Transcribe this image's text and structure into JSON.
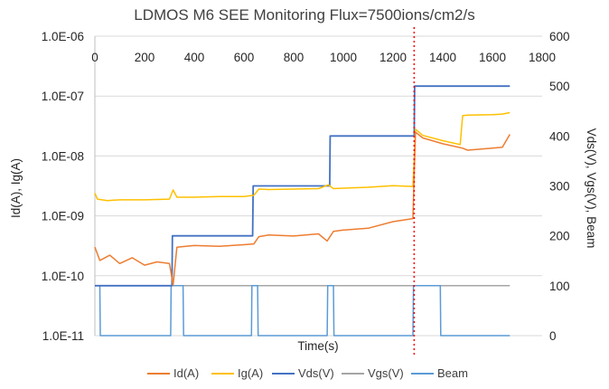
{
  "chart_data": {
    "type": "line",
    "title": "LDMOS M6 SEE Monitoring Flux=7500ions/cm2/s",
    "xlabel": "Time(s)",
    "ylabel_left": "Id(A), Ig(A)",
    "ylabel_right": "Vds(V), Vgs(V), Beam",
    "x_range": [
      0,
      1800
    ],
    "x_ticks": [
      "0",
      "200",
      "400",
      "600",
      "800",
      "1000",
      "1200",
      "1400",
      "1600",
      "1800"
    ],
    "y_left_scale": "log",
    "y_left_range": [
      1e-11,
      1e-06
    ],
    "y_left_ticks": [
      "1.0E-11",
      "1.0E-10",
      "1.0E-09",
      "1.0E-08",
      "1.0E-07",
      "1.0E-06"
    ],
    "y_right_range": [
      0,
      600
    ],
    "y_right_ticks": [
      "0",
      "100",
      "200",
      "300",
      "400",
      "500",
      "600"
    ],
    "marker_line_x": 1285,
    "legend_position": "bottom",
    "series": [
      {
        "name": "Id(A)",
        "axis": "left",
        "color": "#ED7D31",
        "x": [
          0,
          20,
          60,
          100,
          150,
          200,
          250,
          300,
          315,
          330,
          400,
          500,
          600,
          640,
          660,
          700,
          800,
          900,
          935,
          960,
          1000,
          1100,
          1200,
          1280,
          1290,
          1320,
          1400,
          1480,
          1500,
          1550,
          1600,
          1640,
          1670
        ],
        "y": [
          3e-10,
          1.8e-10,
          2.2e-10,
          1.6e-10,
          2e-10,
          1.5e-10,
          1.7e-10,
          1.6e-10,
          7e-11,
          3e-10,
          3.2e-10,
          3.1e-10,
          3.3e-10,
          3.4e-10,
          4.5e-10,
          4.8e-10,
          4.6e-10,
          5e-10,
          3.8e-10,
          5.5e-10,
          5.8e-10,
          6.2e-10,
          8e-10,
          9e-10,
          2.5e-08,
          2e-08,
          1.6e-08,
          1.35e-08,
          1.25e-08,
          1.3e-08,
          1.35e-08,
          1.4e-08,
          2.3e-08
        ]
      },
      {
        "name": "Ig(A)",
        "axis": "left",
        "color": "#FFC000",
        "x": [
          0,
          10,
          50,
          100,
          200,
          300,
          315,
          330,
          400,
          500,
          600,
          640,
          660,
          700,
          800,
          900,
          940,
          960,
          1000,
          1100,
          1200,
          1280,
          1290,
          1320,
          1400,
          1470,
          1480,
          1500,
          1600,
          1640,
          1670
        ],
        "y": [
          2.4e-09,
          1.9e-09,
          1.8e-09,
          1.85e-09,
          1.85e-09,
          1.9e-09,
          2.7e-09,
          2.05e-09,
          2.05e-09,
          2.1e-09,
          2.1e-09,
          2.2e-09,
          2.8e-09,
          2.75e-09,
          2.8e-09,
          2.85e-09,
          3.3e-09,
          2.85e-09,
          2.9e-09,
          3e-09,
          3.2e-09,
          3.1e-09,
          2.8e-08,
          2.2e-08,
          1.8e-08,
          1.55e-08,
          4.7e-08,
          4.8e-08,
          4.9e-08,
          5e-08,
          5.3e-08
        ]
      },
      {
        "name": "Vds(V)",
        "axis": "right",
        "color": "#4472C4",
        "x": [
          0,
          310,
          312,
          635,
          637,
          945,
          947,
          1285,
          1287,
          1670
        ],
        "y": [
          100,
          100,
          200,
          200,
          300,
          300,
          400,
          400,
          500,
          500
        ]
      },
      {
        "name": "Vgs(V)",
        "axis": "right",
        "color": "#A5A5A5",
        "x": [
          0,
          1670
        ],
        "y": [
          100,
          100
        ]
      },
      {
        "name": "Beam",
        "axis": "right",
        "color": "#5B9BD5",
        "x": [
          0,
          20,
          22,
          305,
          307,
          355,
          357,
          630,
          632,
          655,
          657,
          935,
          937,
          960,
          962,
          1280,
          1282,
          1390,
          1392,
          1670
        ],
        "y": [
          100,
          100,
          0,
          0,
          100,
          100,
          0,
          0,
          100,
          100,
          0,
          0,
          100,
          100,
          0,
          0,
          100,
          100,
          0,
          0
        ]
      }
    ]
  }
}
